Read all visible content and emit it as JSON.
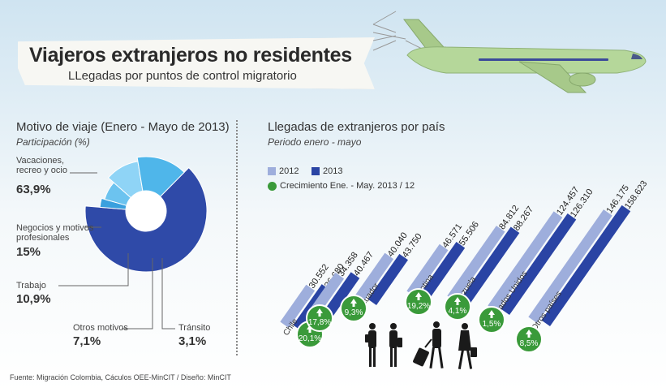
{
  "header": {
    "title": "Viajeros extranjeros no residentes",
    "subtitle": "LLegadas por puntos de control migratorio"
  },
  "left": {
    "title": "Motivo de viaje (Enero - Mayo de 2013)",
    "subtitle": "Participación (%)"
  },
  "right": {
    "title": "Llegadas de extranjeros por país",
    "subtitle": "Periodo enero - mayo",
    "legend_2012": "2012",
    "legend_2013": "2013",
    "legend_growth": "Crecimiento Ene. - May. 2013 / 12"
  },
  "source": "Fuente: Migración Colombia, Cáculos OEE-MinCIT  / Diseño: MinCIT",
  "colors": {
    "bar_2012": "#9eaedc",
    "bar_2013": "#2a44a4",
    "growth": "#3a9a3a",
    "pie_vacaciones": "#2f4aa8",
    "pie_negocios": "#4fb6ea",
    "pie_trabajo": "#8fd4f6",
    "pie_otros": "#6cc3ef",
    "pie_transito": "#3aa0de"
  },
  "chart_data": [
    {
      "type": "pie",
      "title": "Motivo de viaje (Enero - Mayo de 2013)",
      "subtitle": "Participación (%)",
      "slices": [
        {
          "label": "Vacaciones, recreo y ocio",
          "value": 63.9,
          "value_label": "63,9%"
        },
        {
          "label": "Tránsito",
          "value": 3.1,
          "value_label": "3,1%"
        },
        {
          "label": "Otros motivos",
          "value": 7.1,
          "value_label": "7,1%"
        },
        {
          "label": "Trabajo",
          "value": 10.9,
          "value_label": "10,9%"
        },
        {
          "label": "Negocios y motivos profesionales",
          "value": 15,
          "value_label": "15%"
        }
      ]
    },
    {
      "type": "bar",
      "title": "Llegadas de extranjeros por país",
      "subtitle": "Periodo enero - mayo",
      "categories": [
        "Chile",
        "Perú",
        "Ecuador",
        "Argentina",
        "Venezuela",
        "Estados Unidos",
        "Otros países"
      ],
      "series": [
        {
          "name": "2012",
          "values": [
            30552,
            34358,
            40040,
            46571,
            84812,
            124457,
            146175
          ],
          "labels": [
            "30.552",
            "34.358",
            "40.040",
            "46.571",
            "84.812",
            "124.457",
            "146.175"
          ]
        },
        {
          "name": "2013",
          "values": [
            36680,
            40467,
            43750,
            55506,
            88267,
            126310,
            158623
          ],
          "labels": [
            "36.680",
            "40.467",
            "43.750",
            "55.506",
            "88.267",
            "126.310",
            "158.623"
          ]
        }
      ],
      "growth_name": "Crecimiento Ene. - May. 2013 / 12",
      "growth": [
        20.1,
        17.8,
        9.3,
        19.2,
        4.1,
        1.5,
        8.5
      ],
      "growth_labels": [
        "20,1%",
        "17,8%",
        "9,3%",
        "19,2%",
        "4,1%",
        "1,5%",
        "8,5%"
      ]
    }
  ]
}
